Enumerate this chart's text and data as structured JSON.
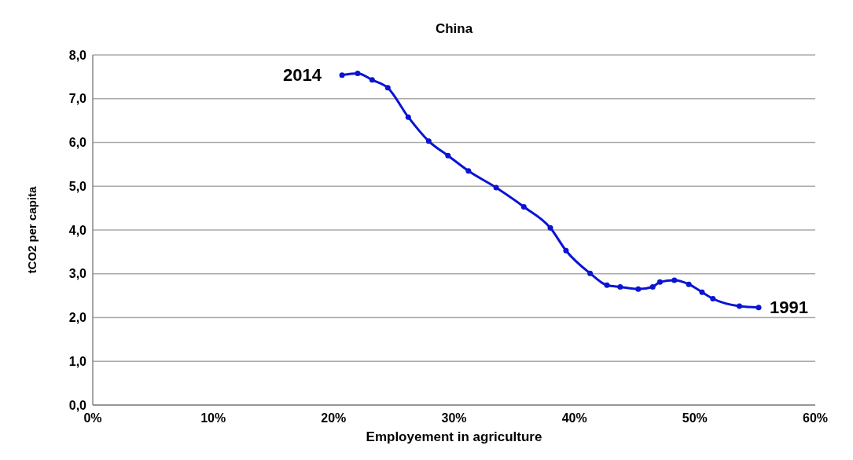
{
  "chart_data": {
    "type": "line",
    "title": "China",
    "xlabel": "Employement in agriculture",
    "ylabel": "tCO2 per capita",
    "x": [
      20.7,
      22.0,
      23.2,
      24.5,
      26.2,
      27.9,
      29.5,
      31.2,
      33.5,
      35.8,
      38.0,
      39.3,
      41.3,
      42.7,
      43.8,
      45.3,
      46.5,
      47.1,
      48.3,
      49.5,
      50.6,
      51.5,
      53.7,
      55.3
    ],
    "series": [
      {
        "color": "#0a14d2",
        "values": [
          7.54,
          7.58,
          7.43,
          7.25,
          6.58,
          6.03,
          5.7,
          5.35,
          4.97,
          4.53,
          4.05,
          3.53,
          3.01,
          2.74,
          2.7,
          2.65,
          2.7,
          2.81,
          2.85,
          2.76,
          2.58,
          2.43,
          2.26,
          2.23
        ]
      }
    ],
    "xlim": [
      0,
      60
    ],
    "xticks": [
      {
        "value": 0,
        "label": "0%"
      },
      {
        "value": 10,
        "label": "10%"
      },
      {
        "value": 20,
        "label": "20%"
      },
      {
        "value": 30,
        "label": "30%"
      },
      {
        "value": 40,
        "label": "40%"
      },
      {
        "value": 50,
        "label": "50%"
      },
      {
        "value": 60,
        "label": "60%"
      }
    ],
    "ylim": [
      0,
      8
    ],
    "yticks": [
      {
        "value": 0,
        "label": "0,0"
      },
      {
        "value": 1,
        "label": "1,0"
      },
      {
        "value": 2,
        "label": "2,0"
      },
      {
        "value": 3,
        "label": "3,0"
      },
      {
        "value": 4,
        "label": "4,0"
      },
      {
        "value": 5,
        "label": "5,0"
      },
      {
        "value": 6,
        "label": "6,0"
      },
      {
        "value": 7,
        "label": "7,0"
      },
      {
        "value": 8,
        "label": "8,0"
      }
    ],
    "grid": "y",
    "marker": "circle",
    "line_style": "solid",
    "annotations": [
      {
        "text": "2014",
        "x": 20.7,
        "y": 7.54
      },
      {
        "text": "1991",
        "x": 55.3,
        "y": 2.23
      }
    ]
  }
}
